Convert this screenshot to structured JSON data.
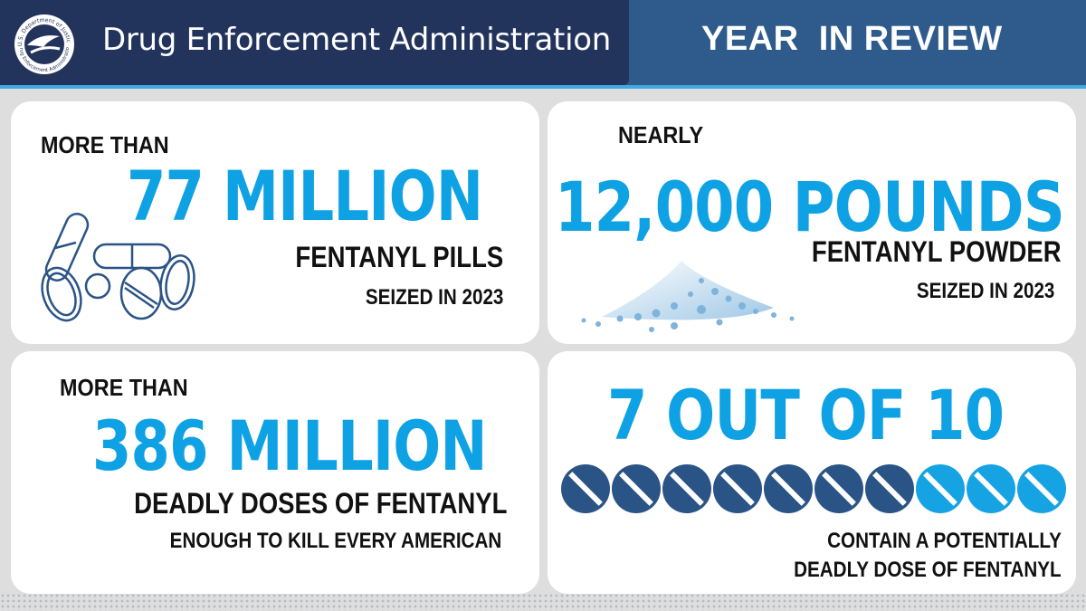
{
  "header": {
    "agency_name": "Drug Enforcement Administration",
    "seal_top_text": "U.S. Department of Justice",
    "seal_bottom_text": "Drug Enforcement Administration",
    "banner_title": "YEAR  IN REVIEW"
  },
  "stats": [
    {
      "lead": "MORE THAN",
      "figure": "77 MILLION",
      "subject": "FENTANYL PILLS",
      "detail": "SEIZED IN 2023",
      "icon": "pills-icon"
    },
    {
      "lead": "NEARLY",
      "figure": "12,000 POUNDS",
      "subject": "FENTANYL POWDER",
      "detail": "SEIZED IN 2023",
      "icon": "powder-pile-icon"
    },
    {
      "lead": "MORE THAN",
      "figure": "386 MILLION",
      "subject": "DEADLY DOSES OF FENTANYL",
      "detail": "ENOUGH TO KILL EVERY AMERICAN"
    },
    {
      "figure": "7 OUT OF 10",
      "detail_line1": "CONTAIN A POTENTIALLY",
      "detail_line2": "DEADLY DOSE OF FENTANYL",
      "pill_ratio": {
        "deadly": 7,
        "total": 10
      }
    }
  ],
  "colors": {
    "header_dark": "#23345c",
    "header_mid": "#2f5b8c",
    "accent_blue": "#0ea2e4",
    "pill_dark": "#2a5486",
    "pill_light": "#16a3e3",
    "text_dark": "#111111"
  }
}
